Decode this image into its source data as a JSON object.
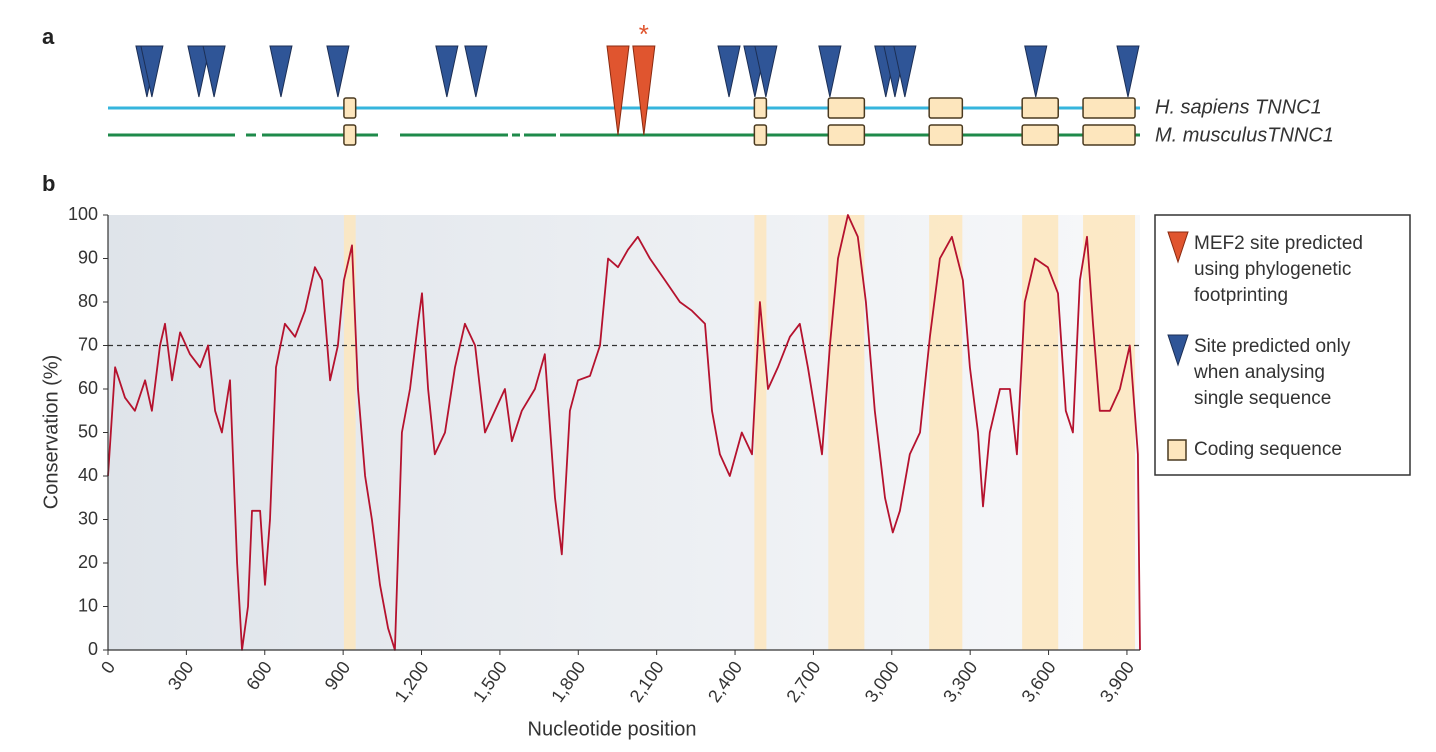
{
  "chart_data": {
    "type": "line",
    "panel_a": "a",
    "panel_b": "b",
    "species": [
      "H. sapiens TNNC1",
      "M. musculusTNNC1"
    ],
    "marker": "*",
    "y_label": "Conservation (%)",
    "x_label": "Nucleotide position",
    "color": "#b5122e",
    "threshold": 70,
    "xlim": [
      0,
      3950
    ],
    "ylim": [
      0,
      100
    ],
    "xticks": [
      0,
      300,
      600,
      900,
      {
        "value": 1200,
        "label": "1,200"
      },
      {
        "value": 1500,
        "label": "1,500"
      },
      {
        "value": 1800,
        "label": "1,800"
      },
      {
        "value": 2100,
        "label": "2,100"
      },
      {
        "value": 2400,
        "label": "2,400"
      },
      {
        "value": 2700,
        "label": "2,700"
      },
      {
        "value": 3000,
        "label": "3,000"
      },
      {
        "value": 3300,
        "label": "3,300"
      },
      {
        "value": 3600,
        "label": "3,600"
      },
      {
        "value": 3900,
        "label": "3,900"
      }
    ],
    "yticks": [
      0,
      10,
      20,
      30,
      40,
      50,
      60,
      70,
      80,
      90,
      100
    ],
    "x": [
      0,
      27,
      65,
      103,
      142,
      168,
      199,
      218,
      245,
      276,
      314,
      352,
      383,
      410,
      436,
      467,
      494,
      513,
      536,
      551,
      582,
      601,
      620,
      643,
      677,
      716,
      754,
      792,
      819,
      850,
      880,
      903,
      934,
      957,
      984,
      1010,
      1041,
      1072,
      1098,
      1125,
      1156,
      1186,
      1202,
      1225,
      1251,
      1290,
      1328,
      1366,
      1405,
      1443,
      1481,
      1519,
      1546,
      1584,
      1634,
      1672,
      1711,
      1737,
      1768,
      1799,
      1845,
      1883,
      1914,
      1952,
      1990,
      2028,
      2074,
      2132,
      2189,
      2235,
      2285,
      2312,
      2342,
      2380,
      2426,
      2465,
      2495,
      2526,
      2564,
      2610,
      2648,
      2679,
      2706,
      2733,
      2763,
      2794,
      2832,
      2870,
      2901,
      2935,
      2974,
      3004,
      3031,
      3069,
      3108,
      3146,
      3184,
      3230,
      3272,
      3299,
      3330,
      3349,
      3375,
      3414,
      3452,
      3479,
      3509,
      3548,
      3597,
      3636,
      3666,
      3693,
      3720,
      3747,
      3770,
      3796,
      3835,
      3873,
      3911,
      3942,
      3950
    ],
    "values": [
      40,
      65,
      58,
      55,
      62,
      55,
      70,
      75,
      62,
      73,
      68,
      65,
      70,
      55,
      50,
      62,
      20,
      0,
      10,
      32,
      32,
      15,
      30,
      65,
      75,
      72,
      78,
      88,
      85,
      62,
      70,
      85,
      93,
      60,
      40,
      30,
      15,
      5,
      0,
      50,
      60,
      75,
      82,
      60,
      45,
      50,
      65,
      75,
      70,
      50,
      55,
      60,
      48,
      55,
      60,
      68,
      35,
      22,
      55,
      62,
      63,
      70,
      90,
      88,
      92,
      95,
      90,
      85,
      80,
      78,
      75,
      55,
      45,
      40,
      50,
      45,
      80,
      60,
      65,
      72,
      75,
      65,
      55,
      45,
      70,
      90,
      100,
      95,
      80,
      55,
      35,
      27,
      32,
      45,
      50,
      72,
      90,
      95,
      85,
      65,
      50,
      33,
      50,
      60,
      60,
      45,
      80,
      90,
      88,
      82,
      55,
      50,
      85,
      95,
      75,
      55,
      55,
      60,
      70,
      45,
      0
    ],
    "coding_sequences": [
      [
        903,
        948
      ],
      [
        2474,
        2520
      ],
      [
        2757,
        2895
      ],
      [
        3143,
        3270
      ],
      [
        3499,
        3637
      ],
      [
        3732,
        3931
      ]
    ],
    "mef2_sites": [
      1952,
      2051
    ],
    "single_sites": [
      149,
      168,
      348,
      406,
      662,
      880,
      1297,
      1408,
      2377,
      2476,
      2518,
      2763,
      2977,
      3012,
      3050,
      3551,
      3904
    ],
    "mef2_color": "#e0552f",
    "single_color": "#2f5597",
    "coding_color": "#fde6bd",
    "legend": [
      {
        "label": "MEF2 site predicted using phylogenetic footprinting"
      },
      {
        "label": "Site predicted only when analysing single sequence"
      },
      {
        "label": "Coding sequence"
      }
    ]
  }
}
